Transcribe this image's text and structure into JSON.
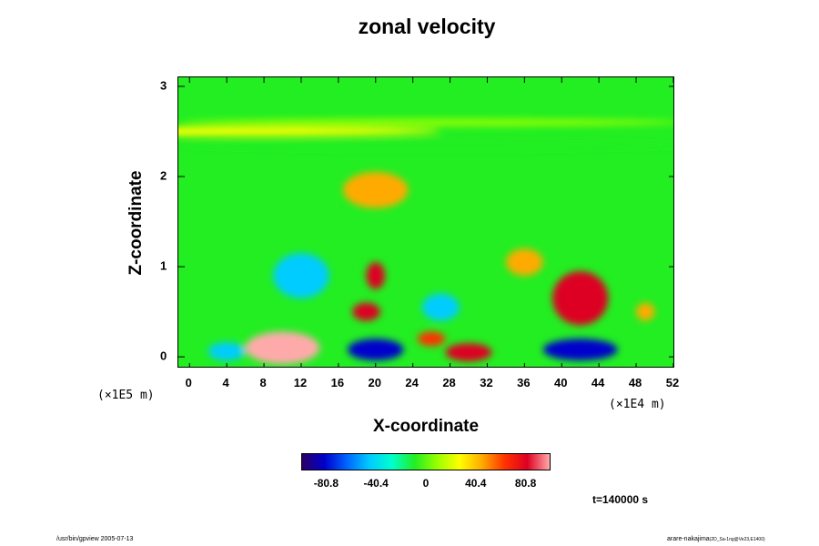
{
  "chart_data": {
    "type": "heatmap",
    "title": "zonal velocity",
    "xlabel": "X-coordinate",
    "ylabel": "Z-coordinate",
    "x_multiplier": "(×1E4 m)",
    "y_multiplier": "(×1E5 m)",
    "xlim": [
      -1.2,
      52.2
    ],
    "ylim": [
      -0.13,
      3.1
    ],
    "x_ticks": [
      "0",
      "4",
      "8",
      "12",
      "16",
      "20",
      "24",
      "28",
      "32",
      "36",
      "40",
      "44",
      "48",
      "52"
    ],
    "y_ticks": [
      "0",
      "1",
      "2",
      "3"
    ],
    "colorbar": {
      "ticks": [
        "-80.8",
        "-40.4",
        "0",
        "40.4",
        "80.8"
      ],
      "range": [
        -101,
        101
      ],
      "colors": [
        "#2a0066",
        "#0000cc",
        "#0066ff",
        "#00ccff",
        "#00ffcc",
        "#22ee22",
        "#99ff00",
        "#ffff00",
        "#ffaa00",
        "#ff3300",
        "#dd0022",
        "#ffaaaa"
      ]
    },
    "features": [
      {
        "x": 2,
        "z": 2.5,
        "w": 50,
        "h": 0.05,
        "value": 30
      },
      {
        "x": 26,
        "z": 2.6,
        "w": 54,
        "h": 0.04,
        "value": 15
      },
      {
        "x": 26,
        "z": 2.35,
        "w": 54,
        "h": 0.05,
        "value": -15
      },
      {
        "x": 20,
        "z": 1.85,
        "w": 7,
        "h": 0.2,
        "value": 50
      },
      {
        "x": 12,
        "z": 0.9,
        "w": 6,
        "h": 0.25,
        "value": -45
      },
      {
        "x": 10,
        "z": 0.1,
        "w": 8,
        "h": 0.18,
        "value": 90
      },
      {
        "x": 4,
        "z": 0.06,
        "w": 4,
        "h": 0.1,
        "value": -50
      },
      {
        "x": 20,
        "z": 0.08,
        "w": 6,
        "h": 0.12,
        "value": -70
      },
      {
        "x": 20,
        "z": 0.9,
        "w": 2,
        "h": 0.15,
        "value": 75
      },
      {
        "x": 19,
        "z": 0.5,
        "w": 3,
        "h": 0.1,
        "value": 70
      },
      {
        "x": 26,
        "z": 0.2,
        "w": 3,
        "h": 0.08,
        "value": 60
      },
      {
        "x": 30,
        "z": 0.05,
        "w": 5,
        "h": 0.1,
        "value": 80
      },
      {
        "x": 42,
        "z": 0.08,
        "w": 8,
        "h": 0.12,
        "value": -80
      },
      {
        "x": 42,
        "z": 0.65,
        "w": 6,
        "h": 0.3,
        "value": 70
      },
      {
        "x": 27,
        "z": 0.55,
        "w": 4,
        "h": 0.15,
        "value": -40
      },
      {
        "x": 36,
        "z": 1.05,
        "w": 4,
        "h": 0.15,
        "value": 40
      },
      {
        "x": 49,
        "z": 0.5,
        "w": 2,
        "h": 0.1,
        "value": 50
      }
    ]
  },
  "time_label": "t=140000 s",
  "footer_left": "/usr/bin/gpview 2005-07-13",
  "footer_right": "arare-nakajima",
  "footer_right_sub": "(2D_Sa-1ng@Ve23,E1400)"
}
